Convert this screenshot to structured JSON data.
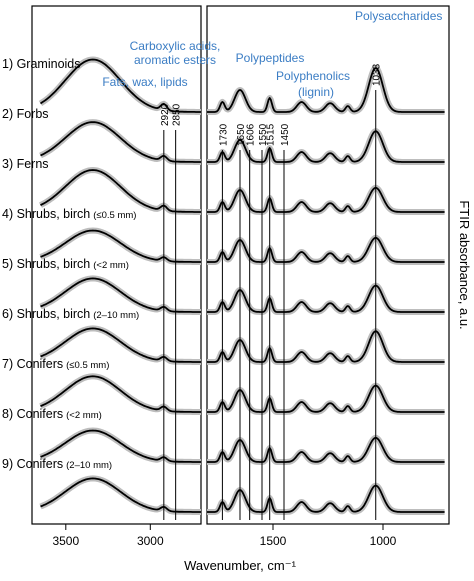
{
  "chart_data": {
    "type": "line",
    "title": "",
    "xlabel": "Wavenumber, cm⁻¹",
    "ylabel": "FTIR absorbance, a.u.",
    "x_reversed": true,
    "x_axis_break": [
      2700,
      1800
    ],
    "x_ticks": [
      "3500",
      "3000",
      "1500",
      "1000"
    ],
    "x_tick_values": [
      3500,
      3000,
      1500,
      1000
    ],
    "series": [
      {
        "name": "1) Graminoids",
        "amp": 1.25,
        "peak": 1.0
      },
      {
        "name": "2) Forbs",
        "amp": 0.95,
        "peak": 0.7
      },
      {
        "name": "3) Ferns",
        "amp": 1.0,
        "peak": 0.55
      },
      {
        "name": "4) Shrubs, birch",
        "note": "(≤0.5 mm)",
        "amp": 0.75,
        "peak": 0.55
      },
      {
        "name": "5) Shrubs, birch",
        "note": "(<2 mm)",
        "amp": 0.8,
        "peak": 0.6
      },
      {
        "name": "6) Shrubs, birch",
        "note": "(2–10 mm)",
        "amp": 0.8,
        "peak": 0.7
      },
      {
        "name": "7) Conifers",
        "note": "(≤0.5 mm)",
        "amp": 0.85,
        "peak": 0.6
      },
      {
        "name": "8) Conifers",
        "note": "(<2 mm)",
        "amp": 0.75,
        "peak": 0.55
      },
      {
        "name": "9) Conifers",
        "note": "(2–10 mm)",
        "amp": 0.8,
        "peak": 0.6
      }
    ],
    "band_lines": [
      {
        "label": "2920",
        "x": 2920
      },
      {
        "label": "2850",
        "x": 2850
      },
      {
        "label": "1730",
        "x": 1730
      },
      {
        "label": "1650",
        "x": 1650
      },
      {
        "label": "1606",
        "x": 1606
      },
      {
        "label": "1550",
        "x": 1550
      },
      {
        "label": "1515",
        "x": 1515
      },
      {
        "label": "1450",
        "x": 1450
      },
      {
        "label": "1033",
        "x": 1033
      }
    ],
    "annotations": [
      {
        "text": "Polysaccharides",
        "color": "#3b7dc4"
      },
      {
        "text": "Carboxylic acids,",
        "color": "#3b7dc4"
      },
      {
        "text": "aromatic esters",
        "color": "#3b7dc4"
      },
      {
        "text": "Polypeptides",
        "color": "#3b7dc4"
      },
      {
        "text": "Polyphenolics",
        "color": "#3b7dc4"
      },
      {
        "text": "(lignin)",
        "color": "#3b7dc4"
      },
      {
        "text": "Fats, wax, lipids",
        "color": "#3b7dc4"
      }
    ],
    "colors": {
      "line": "#000000",
      "band": "#bdbdbd",
      "annotation": "#3b7dc4"
    }
  }
}
